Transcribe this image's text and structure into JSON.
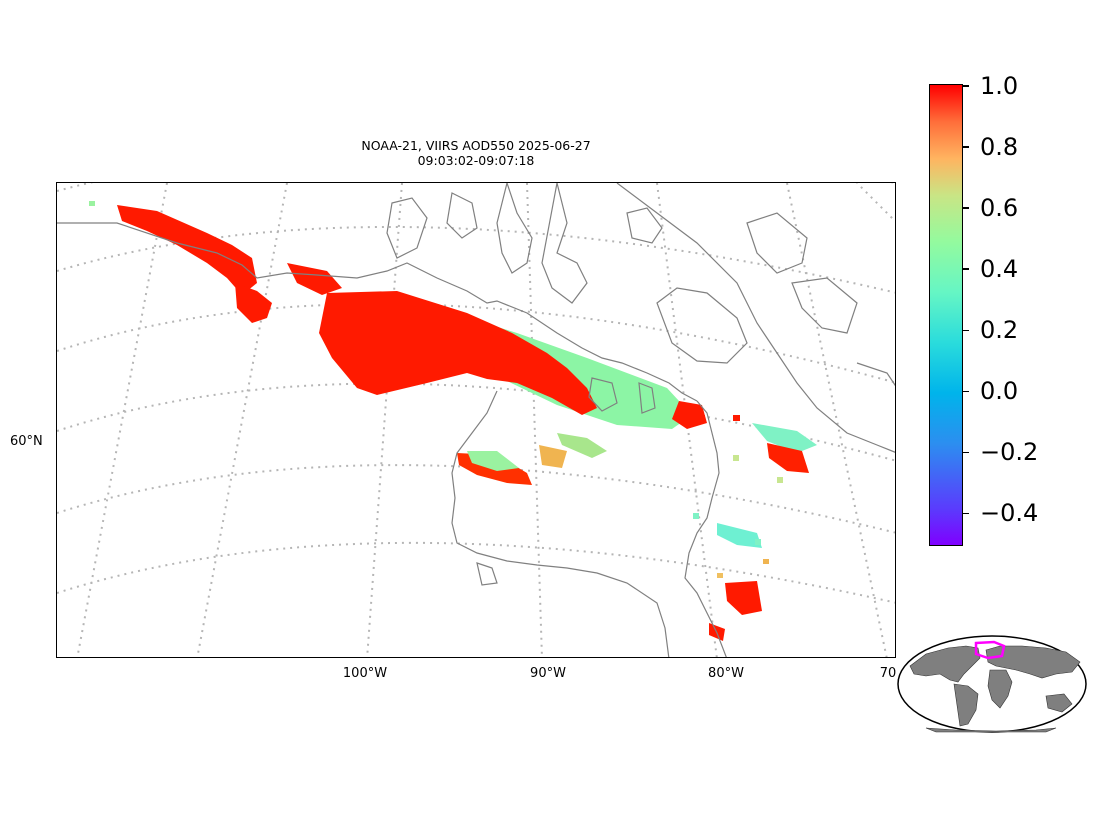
{
  "title": {
    "line1": "NOAA-21, VIIRS AOD550 2025-06-27",
    "line2": "09:03:02-09:07:18"
  },
  "map": {
    "lon_labels": [
      "100°W",
      "90°W",
      "80°W",
      "70"
    ],
    "lat_labels": [
      "60°N"
    ],
    "coastline_color": "#808080",
    "graticule_color": "#b0b0b0"
  },
  "colorbar": {
    "colormap": "rainbow",
    "min": -0.5,
    "max": 1.0,
    "ticks": [
      "1.0",
      "0.8",
      "0.6",
      "0.4",
      "0.2",
      "0.0",
      "−0.2",
      "−0.4"
    ]
  },
  "inset": {
    "type": "world-globe-locator",
    "land_color": "#7f7f7f",
    "highlight_color": "#ff00ff"
  }
}
